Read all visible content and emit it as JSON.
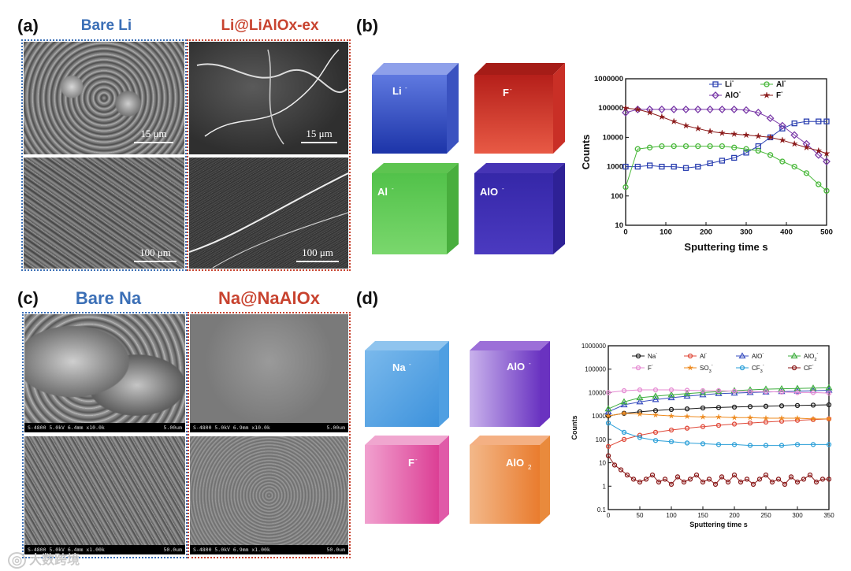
{
  "panel_a": {
    "label": "(a)",
    "left_title": "Bare Li",
    "right_title": "Li@LiAlOx-ex",
    "scale_tl": "15 μm",
    "scale_tr": "15 μm",
    "scale_bl": "100 μm",
    "scale_br": "100 μm"
  },
  "panel_b": {
    "label": "(b)",
    "cubes": [
      {
        "label": "Li",
        "sup": "-",
        "color": "#2f4fc6"
      },
      {
        "label": "F",
        "sup": "-",
        "color": "#d2372d"
      },
      {
        "label": "Al",
        "sup": "-",
        "color": "#3fbd39"
      },
      {
        "label": "AlO",
        "sup": "-",
        "color": "#3a2bb0"
      }
    ]
  },
  "panel_c": {
    "label": "(c)",
    "left_title": "Bare Na",
    "right_title": "Na@NaAlOx",
    "info_tl": "S-4800 5.0kV 6.4mm x10.0k",
    "scale_tl": "5.00um",
    "info_tr": "S-4800 5.0kV 6.9mm x10.0k",
    "scale_tr": "5.00um",
    "info_bl": "S-4800 5.0kV 6.4mm x1.00k",
    "scale_bl": "50.0um",
    "info_br": "S-4800 5.0kV 6.9mm x1.00k",
    "scale_br": "50.0um"
  },
  "panel_d": {
    "label": "(d)",
    "cubes": [
      {
        "label": "Na",
        "sup": "-",
        "color": "#4a9ee0"
      },
      {
        "label": "AlO",
        "sup": "-",
        "color": "#7b45c9"
      },
      {
        "label": "F",
        "sup": "-",
        "color": "#e0479c"
      },
      {
        "label": "AlO",
        "sub": "2",
        "sup": "",
        "color": "#ee8a3c"
      }
    ]
  },
  "chart_data": [
    {
      "type": "scatter",
      "title": "",
      "xlabel": "Sputtering time s",
      "ylabel": "Counts",
      "xlim": [
        0,
        500
      ],
      "ylim": [
        10,
        1000000
      ],
      "yscale": "log",
      "xticks": [
        "0",
        "100",
        "200",
        "300",
        "400",
        "500"
      ],
      "yticks": [
        "10",
        "100",
        "1000",
        "10000",
        "100000",
        "1000000"
      ],
      "legend": "top-right",
      "series": [
        {
          "name": "Li",
          "sup": "-",
          "marker": "square",
          "color": "#2a3fb0",
          "x": [
            0,
            30,
            60,
            90,
            120,
            150,
            180,
            210,
            240,
            270,
            300,
            330,
            360,
            390,
            420,
            450,
            480,
            500
          ],
          "y": [
            1000,
            1000,
            1100,
            1000,
            1000,
            900,
            1000,
            1300,
            1600,
            2000,
            3000,
            5000,
            10000,
            20000,
            30000,
            35000,
            35000,
            35000
          ]
        },
        {
          "name": "Al",
          "sup": "-",
          "marker": "circle",
          "color": "#49b83a",
          "x": [
            0,
            30,
            60,
            90,
            120,
            150,
            180,
            210,
            240,
            270,
            300,
            330,
            360,
            390,
            420,
            450,
            480,
            500
          ],
          "y": [
            200,
            4000,
            4500,
            5000,
            5000,
            5000,
            5000,
            5000,
            5000,
            4500,
            4000,
            3500,
            2500,
            1500,
            1000,
            600,
            250,
            150
          ]
        },
        {
          "name": "AlO",
          "sup": "-",
          "marker": "diamond",
          "color": "#7a3aa8",
          "x": [
            0,
            30,
            60,
            90,
            120,
            150,
            180,
            210,
            240,
            270,
            300,
            330,
            360,
            390,
            420,
            450,
            480,
            500
          ],
          "y": [
            70000,
            90000,
            90000,
            90000,
            90000,
            90000,
            90000,
            90000,
            90000,
            90000,
            85000,
            70000,
            45000,
            25000,
            12000,
            6000,
            2500,
            1500
          ]
        },
        {
          "name": "F",
          "sup": "-",
          "marker": "star",
          "color": "#8b1a1a",
          "x": [
            0,
            30,
            60,
            90,
            120,
            150,
            180,
            210,
            240,
            270,
            300,
            330,
            360,
            390,
            420,
            450,
            480,
            500
          ],
          "y": [
            100000,
            90000,
            70000,
            50000,
            35000,
            25000,
            20000,
            16000,
            14000,
            13000,
            12000,
            11000,
            10000,
            8000,
            6000,
            4500,
            3500,
            2800
          ]
        }
      ]
    },
    {
      "type": "scatter",
      "title": "",
      "xlabel": "Sputtering time s",
      "ylabel": "Counts",
      "xlim": [
        0,
        350
      ],
      "ylim": [
        0.1,
        1000000
      ],
      "yscale": "log",
      "xticks": [
        "0",
        "50",
        "100",
        "150",
        "200",
        "250",
        "300",
        "350"
      ],
      "yticks": [
        "0.1",
        "1",
        "10",
        "100",
        "1000",
        "10000",
        "100000",
        "1000000"
      ],
      "legend": "top",
      "series": [
        {
          "name": "Na",
          "sup": "-",
          "sub": "",
          "marker": "circle",
          "color": "#1a1a1a",
          "x": [
            0,
            25,
            50,
            75,
            100,
            125,
            150,
            175,
            200,
            225,
            250,
            275,
            300,
            325,
            350
          ],
          "y": [
            1000,
            1300,
            1500,
            1700,
            1900,
            2000,
            2200,
            2300,
            2400,
            2500,
            2600,
            2700,
            2800,
            2900,
            3000
          ]
        },
        {
          "name": "Al",
          "sup": "-",
          "sub": "",
          "marker": "circle",
          "color": "#e04a3a",
          "x": [
            0,
            25,
            50,
            75,
            100,
            125,
            150,
            175,
            200,
            225,
            250,
            275,
            300,
            325,
            350
          ],
          "y": [
            50,
            100,
            150,
            200,
            250,
            300,
            350,
            400,
            450,
            500,
            550,
            600,
            650,
            700,
            750
          ]
        },
        {
          "name": "AlO",
          "sup": "-",
          "sub": "",
          "marker": "triangle",
          "color": "#3a4fc0",
          "x": [
            0,
            25,
            50,
            75,
            100,
            125,
            150,
            175,
            200,
            225,
            250,
            275,
            300,
            325,
            350
          ],
          "y": [
            1500,
            3000,
            4000,
            5000,
            6000,
            7000,
            8000,
            9000,
            9500,
            10000,
            10500,
            11000,
            11500,
            12000,
            12500
          ]
        },
        {
          "name": "AlO",
          "sup": "-",
          "sub": "2",
          "marker": "triangle",
          "color": "#3fae3f",
          "x": [
            0,
            25,
            50,
            75,
            100,
            125,
            150,
            175,
            200,
            225,
            250,
            275,
            300,
            325,
            350
          ],
          "y": [
            2000,
            4000,
            6000,
            7000,
            8000,
            9000,
            10000,
            11000,
            12000,
            13000,
            14000,
            14500,
            15000,
            15500,
            16000
          ]
        },
        {
          "name": "F",
          "sup": "-",
          "sub": "",
          "marker": "circle",
          "color": "#e58ad2",
          "x": [
            0,
            25,
            50,
            75,
            100,
            125,
            150,
            175,
            200,
            225,
            250,
            275,
            300,
            325,
            350
          ],
          "y": [
            10000,
            12000,
            13000,
            13000,
            13000,
            12500,
            12000,
            12000,
            11500,
            11000,
            11000,
            10500,
            10000,
            10000,
            9500
          ]
        },
        {
          "name": "SO",
          "sup": "-",
          "sub": "3",
          "marker": "star",
          "color": "#ee8a1e",
          "x": [
            0,
            25,
            50,
            75,
            100,
            125,
            150,
            175,
            200,
            225,
            250,
            275,
            300,
            325,
            350
          ],
          "y": [
            1000,
            1300,
            1200,
            1100,
            1000,
            950,
            900,
            900,
            850,
            850,
            800,
            800,
            800,
            750,
            750
          ]
        },
        {
          "name": "CF",
          "sup": "-",
          "sub": "3",
          "marker": "circle",
          "color": "#2a9fd8",
          "x": [
            0,
            25,
            50,
            75,
            100,
            125,
            150,
            175,
            200,
            225,
            250,
            275,
            300,
            325,
            350
          ],
          "y": [
            500,
            200,
            120,
            90,
            80,
            70,
            65,
            60,
            60,
            55,
            55,
            55,
            60,
            60,
            60
          ]
        },
        {
          "name": "CF",
          "sup": "-",
          "sub": "",
          "marker": "circle",
          "color": "#8b1a1a",
          "x": [
            0,
            10,
            20,
            30,
            40,
            50,
            60,
            70,
            80,
            90,
            100,
            110,
            120,
            130,
            140,
            150,
            160,
            170,
            180,
            190,
            200,
            210,
            220,
            230,
            240,
            250,
            260,
            270,
            280,
            290,
            300,
            310,
            320,
            330,
            340,
            350
          ],
          "y": [
            20,
            8,
            5,
            3,
            2,
            1.5,
            2,
            3,
            1.5,
            2,
            1.2,
            2.5,
            1.5,
            2,
            3,
            1.5,
            2,
            1.2,
            2.5,
            1.5,
            3,
            1.5,
            2,
            1.2,
            2,
            3,
            1.5,
            2,
            1.2,
            2.5,
            1.5,
            2,
            3,
            1.5,
            2,
            2
          ]
        }
      ]
    }
  ],
  "watermark": "大数跨境"
}
